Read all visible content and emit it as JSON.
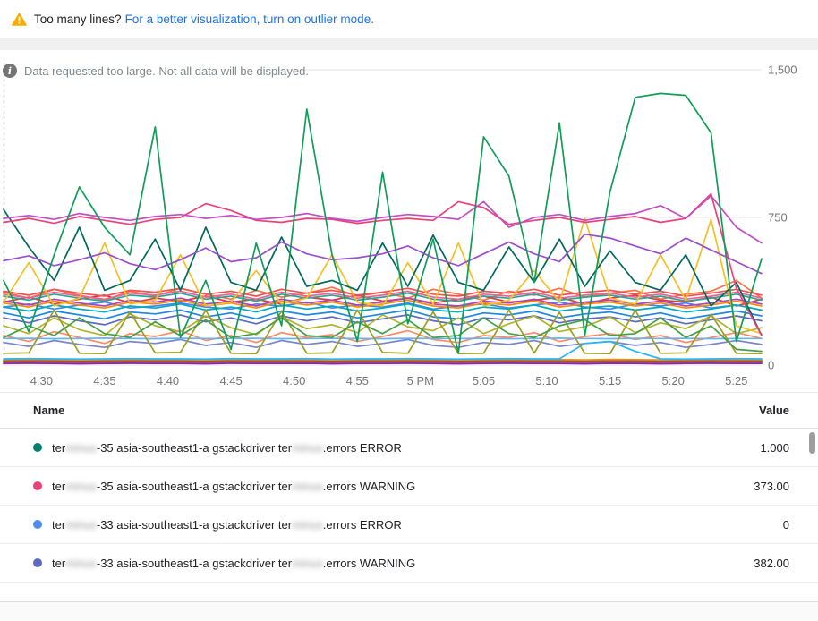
{
  "banner": {
    "question": "Too many lines?",
    "link": "For a better visualization, turn on outlier mode."
  },
  "notice": "Data requested too large. Not all data will be displayed.",
  "chart_data": {
    "type": "line",
    "title": "",
    "xlabel": "",
    "ylabel": "",
    "ylim": [
      0,
      1500
    ],
    "y_ticks": [
      {
        "label": "1,500",
        "value": 1500
      },
      {
        "label": "750",
        "value": 750
      },
      {
        "label": "0",
        "value": 0
      }
    ],
    "x_span_minutes": 60,
    "x_ticks": [
      {
        "label": "4:30",
        "minute": 3
      },
      {
        "label": "4:35",
        "minute": 8
      },
      {
        "label": "4:40",
        "minute": 13
      },
      {
        "label": "4:45",
        "minute": 18
      },
      {
        "label": "4:50",
        "minute": 23
      },
      {
        "label": "4:55",
        "minute": 28
      },
      {
        "label": "5 PM",
        "minute": 33
      },
      {
        "label": "5:05",
        "minute": 38
      },
      {
        "label": "5:10",
        "minute": 43
      },
      {
        "label": "5:15",
        "minute": 48
      },
      {
        "label": "5:20",
        "minute": 53
      },
      {
        "label": "5:25",
        "minute": 58
      }
    ],
    "grid": true,
    "legend_position": "table-below",
    "series": [
      {
        "color": "#ff7043",
        "values": [
          370,
          340,
          385,
          355,
          330,
          375,
          350,
          390,
          360,
          335,
          380,
          345,
          365,
          395,
          350,
          370,
          340,
          385,
          360,
          330,
          375,
          355,
          390,
          345,
          365,
          380,
          335,
          360,
          375,
          430,
          340
        ]
      },
      {
        "color": "#e53935",
        "values": [
          320,
          345,
          310,
          335,
          355,
          315,
          340,
          325,
          350,
          320,
          335,
          310,
          345,
          330,
          355,
          325,
          340,
          315,
          335,
          350,
          320,
          330,
          345,
          310,
          340,
          355,
          330,
          320,
          345,
          300,
          335
        ]
      },
      {
        "color": "#4285f4",
        "values": [
          295,
          310,
          285,
          305,
          320,
          290,
          300,
          315,
          295,
          285,
          310,
          300,
          320,
          290,
          305,
          295,
          315,
          285,
          300,
          310,
          290,
          305,
          320,
          295,
          285,
          310,
          300,
          315,
          290,
          305,
          280
        ]
      },
      {
        "color": "#5c6bc0",
        "values": [
          240,
          215,
          250,
          225,
          205,
          245,
          230,
          255,
          220,
          240,
          210,
          250,
          225,
          245,
          215,
          235,
          255,
          225,
          205,
          240,
          230,
          250,
          215,
          235,
          245,
          220,
          240,
          210,
          230,
          250,
          225
        ]
      },
      {
        "color": "#26a69a",
        "values": [
          350,
          330,
          360,
          340,
          325,
          355,
          345,
          365,
          335,
          350,
          325,
          360,
          340,
          355,
          330,
          345,
          365,
          335,
          325,
          350,
          340,
          360,
          330,
          345,
          355,
          335,
          350,
          325,
          340,
          360,
          330
        ]
      },
      {
        "color": "#ab47bc",
        "values": [
          325,
          305,
          335,
          315,
          300,
          330,
          320,
          340,
          310,
          325,
          300,
          335,
          315,
          330,
          305,
          320,
          340,
          310,
          300,
          325,
          315,
          335,
          305,
          320,
          330,
          310,
          325,
          300,
          315,
          335,
          310
        ]
      },
      {
        "color": "#f06292",
        "values": [
          360,
          340,
          370,
          350,
          335,
          365,
          355,
          375,
          345,
          360,
          335,
          370,
          350,
          365,
          340,
          355,
          375,
          345,
          335,
          360,
          350,
          370,
          340,
          355,
          365,
          345,
          360,
          335,
          350,
          370,
          340
        ]
      },
      {
        "color": "#fb8c00",
        "values": [
          315,
          295,
          325,
          305,
          290,
          320,
          310,
          330,
          300,
          315,
          290,
          325,
          305,
          320,
          295,
          310,
          330,
          300,
          290,
          315,
          305,
          325,
          295,
          310,
          320,
          300,
          315,
          290,
          305,
          325,
          300
        ]
      },
      {
        "color": "#00acc1",
        "values": [
          295,
          275,
          305,
          285,
          270,
          300,
          290,
          310,
          280,
          295,
          270,
          305,
          285,
          300,
          275,
          290,
          310,
          280,
          270,
          295,
          285,
          305,
          275,
          290,
          300,
          280,
          295,
          270,
          285,
          305,
          280
        ]
      },
      {
        "color": "#ef5350",
        "values": [
          375,
          355,
          385,
          365,
          350,
          380,
          370,
          390,
          360,
          375,
          350,
          385,
          365,
          380,
          355,
          370,
          390,
          360,
          350,
          375,
          365,
          385,
          355,
          370,
          380,
          360,
          375,
          350,
          365,
          385,
          355
        ]
      },
      {
        "color": "#1e88e5",
        "values": [
          265,
          240,
          275,
          255,
          235,
          270,
          260,
          280,
          245,
          265,
          235,
          275,
          255,
          270,
          240,
          260,
          280,
          245,
          235,
          265,
          255,
          275,
          240,
          260,
          270,
          245,
          265,
          235,
          255,
          275,
          250
        ]
      },
      {
        "color": "#afb42b",
        "values": [
          200,
          160,
          240,
          180,
          150,
          260,
          200,
          170,
          250,
          190,
          155,
          245,
          185,
          205,
          165,
          255,
          195,
          175,
          240,
          160,
          210,
          250,
          170,
          195,
          245,
          165,
          215,
          185,
          250,
          160,
          190
        ]
      },
      {
        "color": "#ff8a65",
        "values": [
          150,
          120,
          170,
          140,
          110,
          160,
          145,
          175,
          125,
          150,
          115,
          165,
          140,
          155,
          120,
          145,
          175,
          130,
          115,
          150,
          140,
          165,
          120,
          145,
          160,
          130,
          150,
          115,
          140,
          165,
          135
        ]
      },
      {
        "color": "#7986cb",
        "values": [
          115,
          95,
          125,
          105,
          90,
          120,
          110,
          130,
          100,
          115,
          90,
          125,
          105,
          120,
          95,
          110,
          130,
          100,
          90,
          115,
          105,
          125,
          95,
          110,
          120,
          100,
          115,
          90,
          105,
          125,
          105
        ]
      },
      {
        "color": "#64b5f6",
        "values": [
          135,
          136,
          134,
          135,
          137,
          135,
          134,
          136,
          135,
          135,
          136,
          134,
          135,
          136,
          135,
          134,
          136,
          135,
          135,
          136,
          134,
          135,
          137,
          135,
          134,
          136,
          135,
          136,
          134,
          135,
          135
        ]
      },
      {
        "color": "#00897b",
        "values": [
          22,
          23,
          22,
          21,
          22,
          23,
          22,
          22,
          21,
          23,
          22,
          22,
          23,
          21,
          22,
          22,
          23,
          22,
          21,
          22,
          23,
          22,
          22,
          21,
          23,
          22,
          21,
          22,
          23,
          22,
          22
        ]
      },
      {
        "color": "#4285f4",
        "values": [
          12,
          13,
          12,
          11,
          12,
          13,
          12,
          12,
          11,
          13,
          12,
          12,
          13,
          11,
          12,
          12,
          13,
          12,
          11,
          12,
          13,
          12,
          12,
          11,
          13,
          12,
          11,
          12,
          13,
          12,
          12
        ]
      },
      {
        "color": "#e53935",
        "values": [
          18,
          19,
          18,
          17,
          18,
          19,
          18,
          18,
          17,
          19,
          18,
          18,
          19,
          17,
          18,
          18,
          19,
          18,
          17,
          18,
          19,
          18,
          18,
          17,
          19,
          18,
          17,
          18,
          19,
          18,
          18
        ]
      },
      {
        "color": "#8e24aa",
        "values": [
          8,
          9,
          8,
          7,
          8,
          9,
          8,
          8,
          7,
          9,
          8,
          8,
          9,
          7,
          8,
          8,
          9,
          8,
          7,
          8,
          9,
          8,
          8,
          7,
          9,
          8,
          7,
          8,
          9,
          8,
          8
        ]
      },
      {
        "color": "#fb8c00",
        "values": [
          28,
          29,
          28,
          27,
          28,
          29,
          28,
          28,
          27,
          29,
          28,
          28,
          29,
          27,
          28,
          28,
          29,
          28,
          27,
          28,
          29,
          28,
          28,
          27,
          29,
          28,
          27,
          28,
          29,
          28,
          28
        ]
      },
      {
        "color": "#29b6f6",
        "values": [
          32,
          33,
          32,
          31,
          32,
          33,
          32,
          32,
          31,
          33,
          32,
          32,
          33,
          31,
          32,
          32,
          33,
          32,
          31,
          32,
          33,
          32,
          32,
          110,
          120,
          70,
          32,
          31,
          32,
          33,
          32
        ]
      },
      {
        "color": "#9e9d24",
        "values": [
          60,
          62,
          280,
          60,
          58,
          270,
          62,
          64,
          278,
          60,
          58,
          274,
          60,
          62,
          280,
          64,
          60,
          270,
          58,
          60,
          280,
          62,
          268,
          60,
          58,
          278,
          60,
          62,
          258,
          60,
          58
        ]
      },
      {
        "color": "#43a047",
        "values": [
          140,
          200,
          150,
          240,
          160,
          140,
          220,
          150,
          230,
          140,
          160,
          240,
          150,
          140,
          220,
          160,
          230,
          140,
          150,
          240,
          160,
          140,
          200,
          230,
          150,
          160,
          240,
          140,
          200,
          80,
          70
        ]
      },
      {
        "color": "#f6bf26",
        "values": [
          320,
          520,
          300,
          340,
          620,
          310,
          330,
          560,
          300,
          320,
          480,
          310,
          340,
          560,
          320,
          300,
          520,
          310,
          620,
          300,
          330,
          480,
          320,
          745,
          340,
          310,
          560,
          330,
          740,
          200,
          160
        ]
      },
      {
        "color": "#00695c",
        "values": [
          790,
          600,
          430,
          700,
          380,
          430,
          640,
          380,
          700,
          420,
          380,
          650,
          400,
          430,
          380,
          620,
          400,
          660,
          420,
          380,
          600,
          420,
          640,
          400,
          580,
          420,
          380,
          560,
          300,
          420,
          150
        ]
      },
      {
        "color": "#9c4dcc",
        "values": [
          530,
          555,
          505,
          535,
          570,
          515,
          485,
          535,
          595,
          525,
          545,
          625,
          565,
          535,
          545,
          565,
          605,
          545,
          505,
          565,
          625,
          565,
          525,
          665,
          645,
          605,
          565,
          645,
          585,
          525,
          465
        ]
      },
      {
        "color": "#ec407a",
        "values": [
          725,
          745,
          720,
          755,
          735,
          715,
          740,
          750,
          820,
          785,
          735,
          725,
          745,
          740,
          720,
          735,
          745,
          735,
          830,
          800,
          715,
          735,
          750,
          725,
          740,
          755,
          725,
          745,
          870,
          390,
          150
        ]
      },
      {
        "color": "#c04fc4",
        "values": [
          745,
          760,
          740,
          770,
          750,
          735,
          755,
          765,
          745,
          760,
          740,
          750,
          770,
          745,
          730,
          750,
          765,
          755,
          740,
          830,
          700,
          750,
          765,
          735,
          755,
          770,
          810,
          745,
          860,
          700,
          620
        ]
      },
      {
        "color": "#0f9d58",
        "values": [
          430,
          170,
          560,
          905,
          700,
          560,
          1210,
          140,
          430,
          80,
          620,
          200,
          1300,
          560,
          120,
          980,
          210,
          640,
          60,
          1160,
          960,
          420,
          1230,
          150,
          880,
          1360,
          1380,
          1370,
          1180,
          120,
          540
        ]
      }
    ]
  },
  "table": {
    "name_header": "Name",
    "value_header": "Value",
    "rows": [
      {
        "color": "#00836d",
        "pre": "ter",
        "blur1": "minus",
        "mid": "-35 asia-southeast1-a gstackdriver ter",
        "blur2": "minus",
        "post": ".errors ERROR",
        "value": "1.000"
      },
      {
        "color": "#ec407a",
        "pre": "ter",
        "blur1": "minus",
        "mid": "-35 asia-southeast1-a gstackdriver ter",
        "blur2": "minus",
        "post": ".errors WARNING",
        "value": "373.00"
      },
      {
        "color": "#4e8df5",
        "pre": "ter",
        "blur1": "minus",
        "mid": "-33 asia-southeast1-a gstackdriver ter",
        "blur2": "minus",
        "post": ".errors ERROR",
        "value": "0"
      },
      {
        "color": "#5c6bc0",
        "pre": "ter",
        "blur1": "minus",
        "mid": "-33 asia-southeast1-a gstackdriver ter",
        "blur2": "minus",
        "post": ".errors WARNING",
        "value": "382.00"
      }
    ]
  }
}
